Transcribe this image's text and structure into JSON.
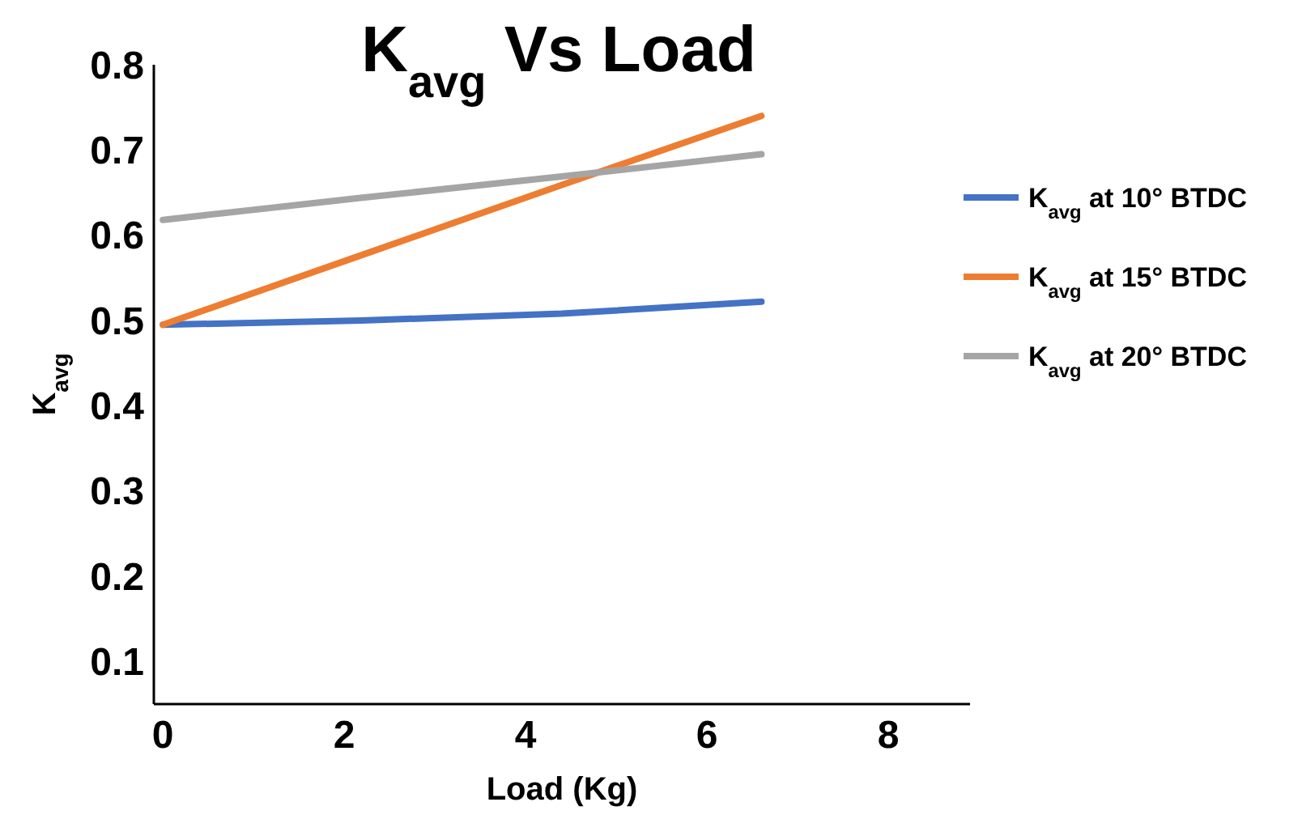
{
  "chart_data": {
    "type": "line",
    "title": "K$_{avg}$  Vs Load",
    "xlabel": "Load (Kg)",
    "ylabel": "K$_{avg}$",
    "x": [
      0,
      2.2,
      4.4,
      6.6
    ],
    "xlim": [
      -0.1,
      8.9
    ],
    "xticks": [
      0,
      2,
      4,
      6,
      8
    ],
    "ylim": [
      0.05,
      0.8
    ],
    "yticks": [
      0.1,
      0.2,
      0.3,
      0.4,
      0.5,
      0.6,
      0.7,
      0.8
    ],
    "grid": false,
    "legend": "right",
    "marker": "none",
    "line_style": "solid",
    "series": [
      {
        "name": "K$_{avg}$ at 10° BTDC",
        "color": "#4472c4",
        "values": [
          0.495,
          0.5,
          0.508,
          0.522
        ]
      },
      {
        "name": "K$_{avg}$ at 15° BTDC",
        "color": "#ed7d31",
        "values": [
          0.495,
          0.577,
          0.659,
          0.74
        ]
      },
      {
        "name": "K$_{avg}$ at 20° BTDC",
        "color": "#a5a5a5",
        "values": [
          0.618,
          0.644,
          0.669,
          0.695
        ]
      }
    ]
  }
}
